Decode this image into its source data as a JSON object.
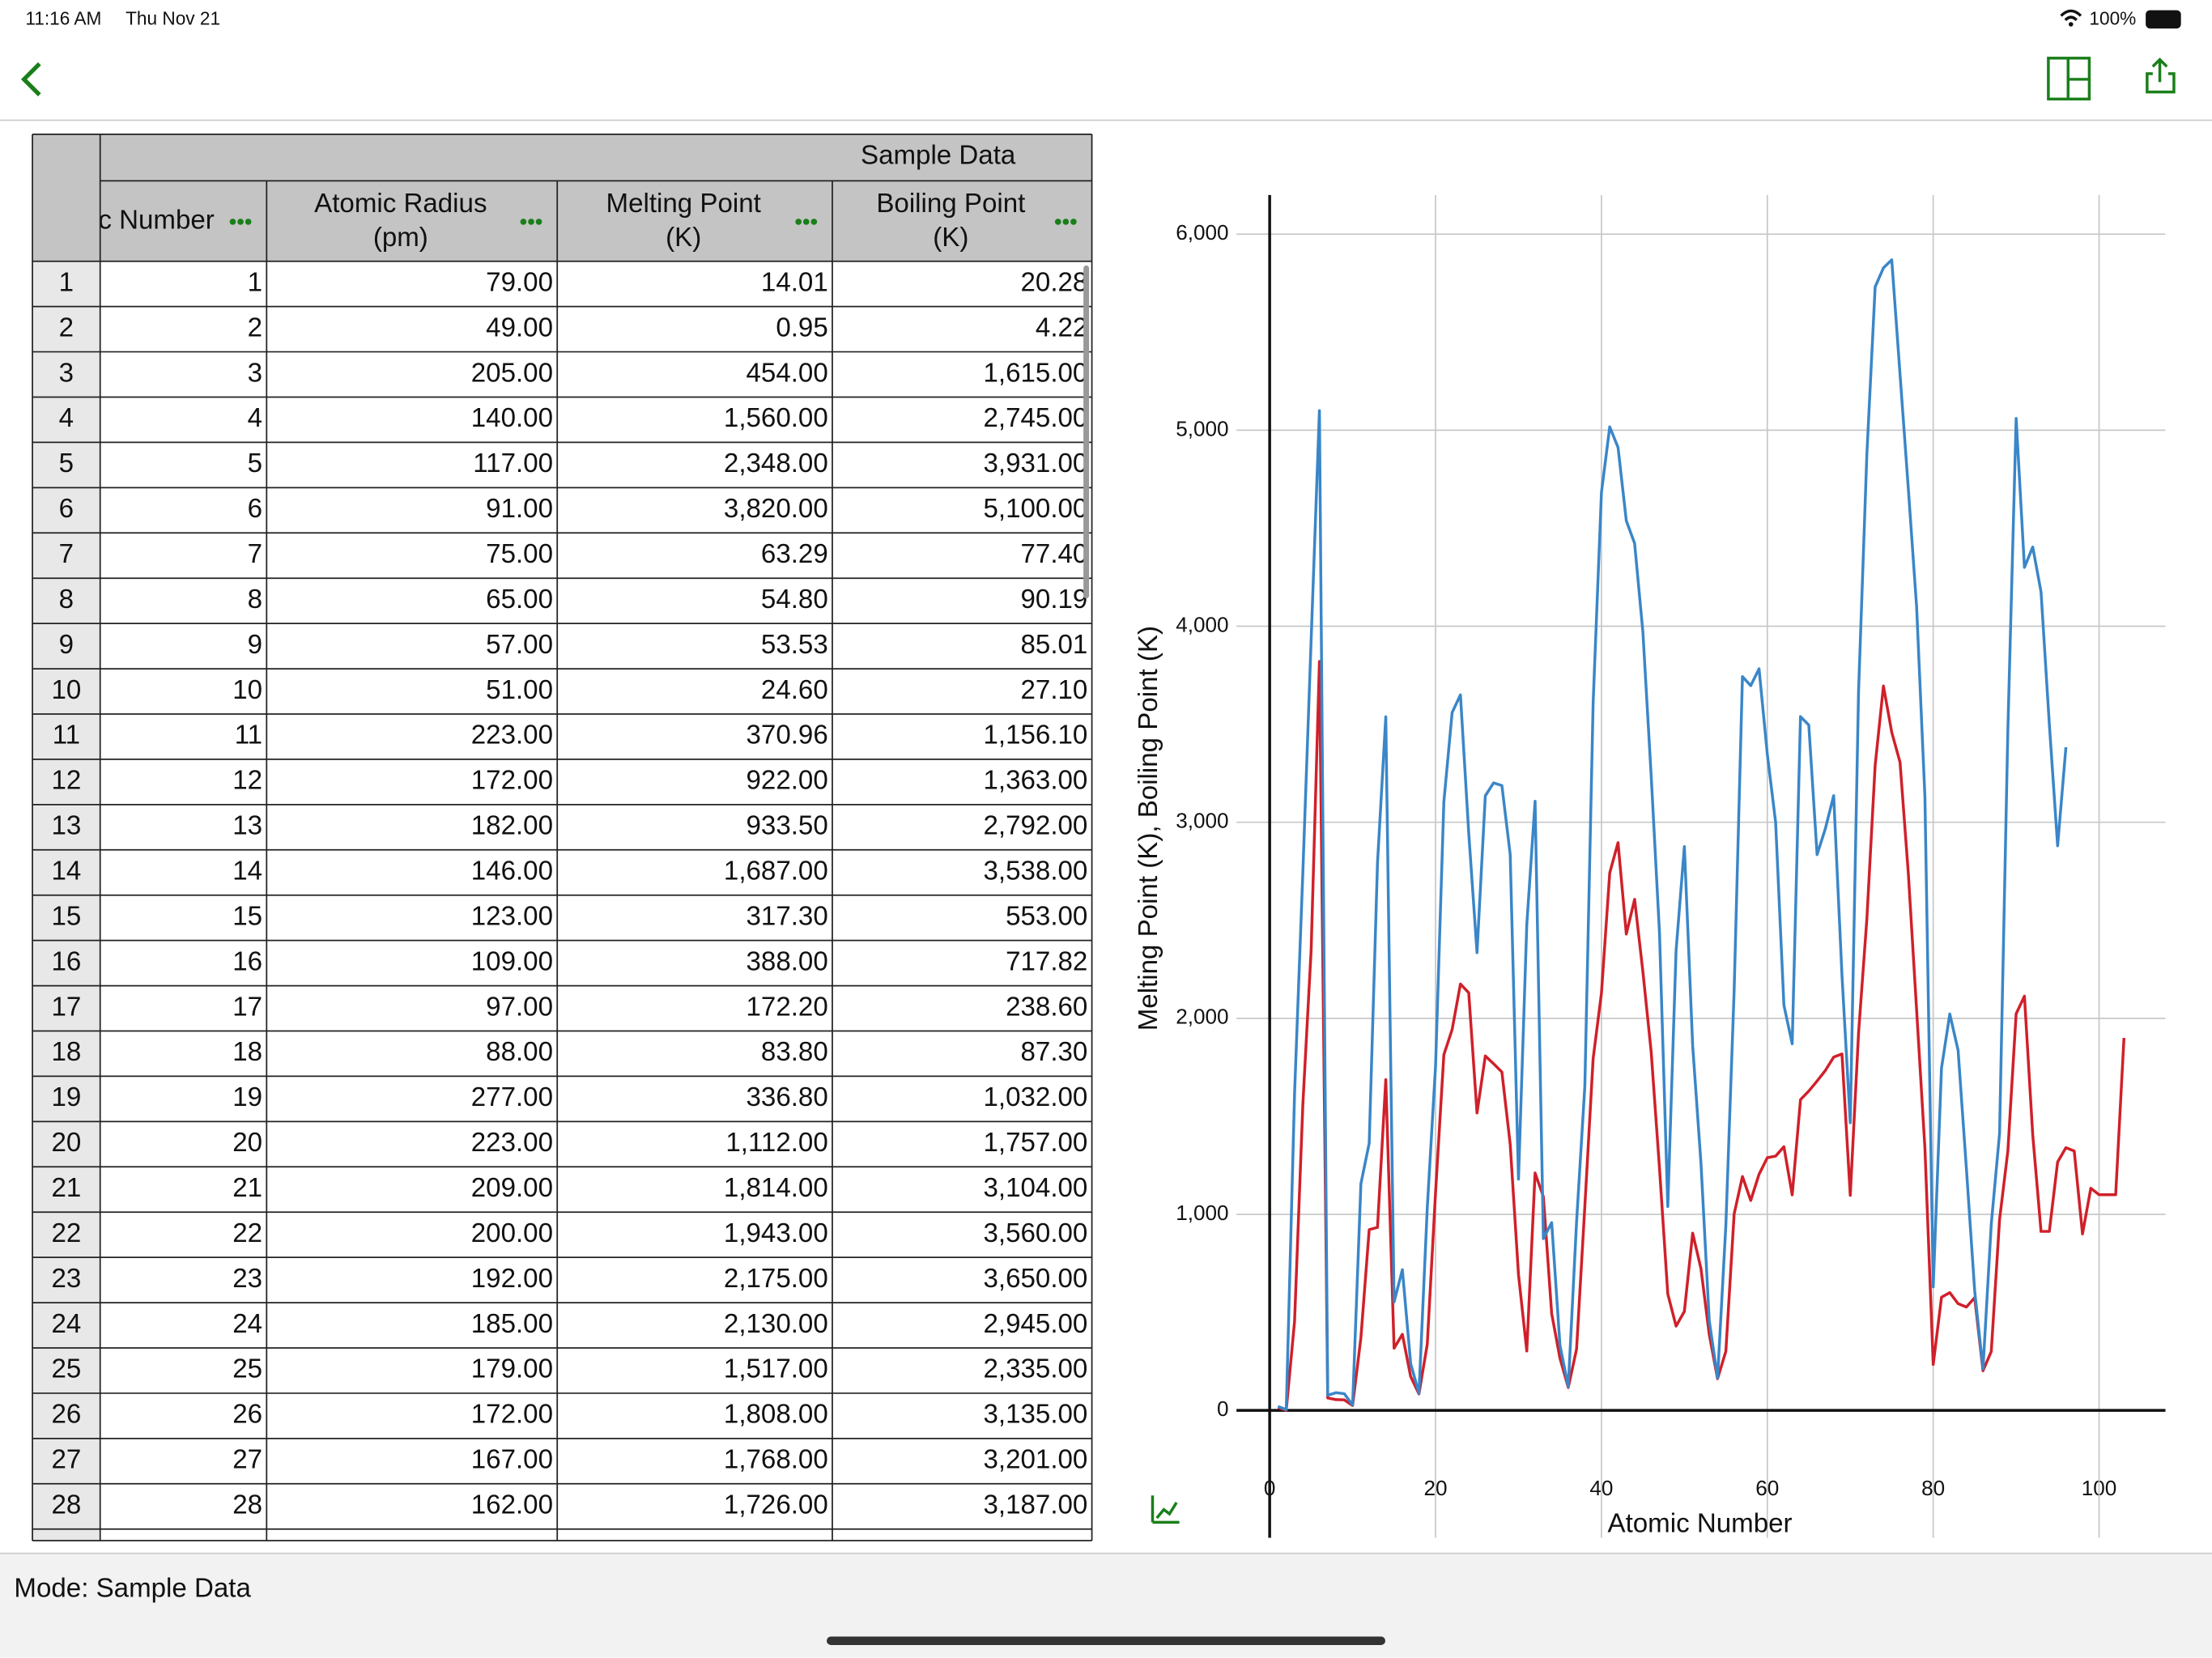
{
  "status_bar": {
    "time": "11:16 AM",
    "date": "Thu Nov 21",
    "battery": "100%"
  },
  "table": {
    "group_header": "Sample Data",
    "columns": [
      "Atomic Number",
      "Atomic Radius (pm)",
      "Melting Point (K)",
      "Boiling Point (K)"
    ],
    "rows": [
      [
        "1",
        "1",
        "79.00",
        "14.01",
        "20.28"
      ],
      [
        "2",
        "2",
        "49.00",
        "0.95",
        "4.22"
      ],
      [
        "3",
        "3",
        "205.00",
        "454.00",
        "1,615.00"
      ],
      [
        "4",
        "4",
        "140.00",
        "1,560.00",
        "2,745.00"
      ],
      [
        "5",
        "5",
        "117.00",
        "2,348.00",
        "3,931.00"
      ],
      [
        "6",
        "6",
        "91.00",
        "3,820.00",
        "5,100.00"
      ],
      [
        "7",
        "7",
        "75.00",
        "63.29",
        "77.40"
      ],
      [
        "8",
        "8",
        "65.00",
        "54.80",
        "90.19"
      ],
      [
        "9",
        "9",
        "57.00",
        "53.53",
        "85.01"
      ],
      [
        "10",
        "10",
        "51.00",
        "24.60",
        "27.10"
      ],
      [
        "11",
        "11",
        "223.00",
        "370.96",
        "1,156.10"
      ],
      [
        "12",
        "12",
        "172.00",
        "922.00",
        "1,363.00"
      ],
      [
        "13",
        "13",
        "182.00",
        "933.50",
        "2,792.00"
      ],
      [
        "14",
        "14",
        "146.00",
        "1,687.00",
        "3,538.00"
      ],
      [
        "15",
        "15",
        "123.00",
        "317.30",
        "553.00"
      ],
      [
        "16",
        "16",
        "109.00",
        "388.00",
        "717.82"
      ],
      [
        "17",
        "17",
        "97.00",
        "172.20",
        "238.60"
      ],
      [
        "18",
        "18",
        "88.00",
        "83.80",
        "87.30"
      ],
      [
        "19",
        "19",
        "277.00",
        "336.80",
        "1,032.00"
      ],
      [
        "20",
        "20",
        "223.00",
        "1,112.00",
        "1,757.00"
      ],
      [
        "21",
        "21",
        "209.00",
        "1,814.00",
        "3,104.00"
      ],
      [
        "22",
        "22",
        "200.00",
        "1,943.00",
        "3,560.00"
      ],
      [
        "23",
        "23",
        "192.00",
        "2,175.00",
        "3,650.00"
      ],
      [
        "24",
        "24",
        "185.00",
        "2,130.00",
        "2,945.00"
      ],
      [
        "25",
        "25",
        "179.00",
        "1,517.00",
        "2,335.00"
      ],
      [
        "26",
        "26",
        "172.00",
        "1,808.00",
        "3,135.00"
      ],
      [
        "27",
        "27",
        "167.00",
        "1,768.00",
        "3,201.00"
      ],
      [
        "28",
        "28",
        "162.00",
        "1,726.00",
        "3,187.00"
      ]
    ]
  },
  "chart_data": {
    "type": "line",
    "x_label": "Atomic Number",
    "y_label": "Melting Point (K), Boiling Point (K)",
    "x": [
      1,
      2,
      3,
      4,
      5,
      6,
      7,
      8,
      9,
      10,
      11,
      12,
      13,
      14,
      15,
      16,
      17,
      18,
      19,
      20,
      21,
      22,
      23,
      24,
      25,
      26,
      27,
      28,
      29,
      30,
      31,
      32,
      33,
      34,
      35,
      36,
      37,
      38,
      39,
      40,
      41,
      42,
      43,
      44,
      45,
      46,
      47,
      48,
      49,
      50,
      51,
      52,
      53,
      54,
      55,
      56,
      57,
      58,
      59,
      60,
      61,
      62,
      63,
      64,
      65,
      66,
      67,
      68,
      69,
      70,
      71,
      72,
      73,
      74,
      75,
      76,
      77,
      78,
      79,
      80,
      81,
      82,
      83,
      84,
      85,
      86,
      87,
      88,
      89,
      90,
      91,
      92,
      93,
      94,
      95,
      96,
      97,
      98,
      99,
      100,
      101,
      102,
      103
    ],
    "series": [
      {
        "name": "Melting Point (K)",
        "color": "#d0202a",
        "values": [
          14.01,
          0.95,
          454,
          1560,
          2348,
          3820,
          63.29,
          54.8,
          53.53,
          24.6,
          370.96,
          922,
          933.5,
          1687,
          317.3,
          388,
          172.2,
          83.8,
          336.8,
          1112,
          1814,
          1943,
          2175,
          2130,
          1517,
          1808,
          1768,
          1726,
          1357.6,
          692.7,
          302.9,
          1211,
          1090,
          494,
          265.9,
          116.6,
          312.2,
          1042,
          1795,
          2128,
          2742,
          2896,
          2430,
          2607,
          2237,
          1828,
          1235,
          594,
          429.8,
          505,
          904,
          722.7,
          386.7,
          161.4,
          301.6,
          1002,
          1193,
          1071,
          1204,
          1289,
          1297,
          1345,
          1099,
          1585,
          1629,
          1680,
          1734,
          1802,
          1818,
          1097,
          1925,
          2506,
          3290,
          3695,
          3459,
          3306,
          2739,
          2041.6,
          1337.6,
          234.3,
          577,
          600.6,
          544.6,
          527,
          575,
          202,
          300,
          973,
          1323,
          2023,
          2113,
          1405,
          913,
          913,
          1267,
          1340,
          1323,
          900,
          1133,
          1100,
          1100,
          1100,
          1900
        ]
      },
      {
        "name": "Boiling Point (K)",
        "color": "#3a86c8",
        "values": [
          20.28,
          4.22,
          1615,
          2745,
          3931,
          5100,
          77.4,
          90.19,
          85.01,
          27.1,
          1156.1,
          1363,
          2792,
          3538,
          553,
          717.82,
          238.6,
          87.3,
          1032,
          1757,
          3104,
          3560,
          3650,
          2945,
          2335,
          3135,
          3201,
          3187,
          2836,
          1180,
          2478,
          3107,
          876,
          958,
          331.9,
          120.85,
          961,
          1655,
          3611,
          4682,
          5017,
          4912,
          4538,
          4423,
          3970,
          3236,
          2436,
          1040,
          2346,
          2876,
          1860,
          1261,
          457.5,
          165.1,
          944,
          2143,
          3743,
          3697,
          3783,
          3347,
          3000,
          2067,
          1870,
          3539,
          3496,
          2835,
          2968,
          3136,
          2220,
          1467,
          3668,
          4876,
          5731,
          5828,
          5869,
          5285,
          4701,
          4098,
          3129,
          630,
          1746,
          2022,
          1837,
          1235,
          610,
          211.4,
          950,
          1413,
          3470,
          5060,
          4300,
          4404,
          4175,
          3501,
          2880,
          3383,
          null,
          null,
          null,
          null,
          null,
          null,
          null
        ]
      }
    ],
    "xlim": [
      -4,
      108
    ],
    "ylim": [
      -650,
      6200
    ],
    "xticks": [
      0,
      20,
      40,
      60,
      80,
      100
    ],
    "yticks": [
      0,
      {
        "value": 1000,
        "label": "1,000"
      },
      {
        "value": 2000,
        "label": "2,000"
      },
      {
        "value": 3000,
        "label": "3,000"
      },
      {
        "value": 4000,
        "label": "4,000"
      },
      {
        "value": 5000,
        "label": "5,000"
      },
      {
        "value": 6000,
        "label": "6,000"
      }
    ],
    "grid": true
  },
  "footer": {
    "mode": "Mode:  Sample Data"
  }
}
